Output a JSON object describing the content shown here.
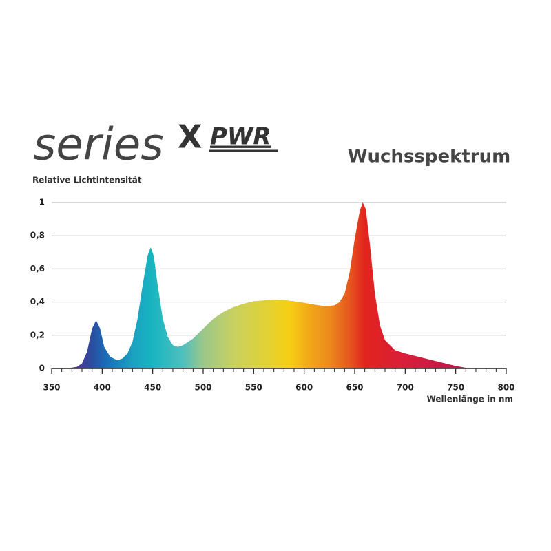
{
  "logo": {
    "text": "series",
    "mark": "X",
    "suffix": "PWR"
  },
  "chart_data": {
    "type": "area",
    "title": "Wuchsspektrum",
    "y_label": "Relative Lichtintensität",
    "x_label": "Wellenlänge in nm",
    "x": [
      350,
      365,
      370,
      375,
      380,
      385,
      390,
      394,
      398,
      402,
      408,
      415,
      420,
      425,
      430,
      435,
      440,
      445,
      448,
      451,
      455,
      460,
      465,
      470,
      475,
      480,
      490,
      500,
      510,
      520,
      530,
      540,
      550,
      560,
      570,
      580,
      590,
      600,
      610,
      620,
      630,
      635,
      640,
      645,
      650,
      655,
      658,
      661,
      665,
      670,
      675,
      680,
      690,
      700,
      710,
      720,
      730,
      740,
      750,
      760,
      770
    ],
    "values": [
      0,
      0,
      0.005,
      0.01,
      0.03,
      0.1,
      0.24,
      0.29,
      0.24,
      0.13,
      0.07,
      0.05,
      0.06,
      0.09,
      0.16,
      0.3,
      0.5,
      0.68,
      0.73,
      0.68,
      0.5,
      0.3,
      0.19,
      0.14,
      0.13,
      0.14,
      0.18,
      0.24,
      0.3,
      0.34,
      0.37,
      0.39,
      0.405,
      0.41,
      0.415,
      0.412,
      0.405,
      0.395,
      0.385,
      0.375,
      0.38,
      0.4,
      0.45,
      0.58,
      0.78,
      0.95,
      1.0,
      0.96,
      0.75,
      0.45,
      0.26,
      0.17,
      0.11,
      0.09,
      0.075,
      0.06,
      0.045,
      0.03,
      0.015,
      0.004,
      0
    ],
    "color_stops": [
      {
        "x": 370,
        "color": "#5b2f8f"
      },
      {
        "x": 390,
        "color": "#2a4ea0"
      },
      {
        "x": 405,
        "color": "#1a6fb8"
      },
      {
        "x": 430,
        "color": "#1aa0c0"
      },
      {
        "x": 450,
        "color": "#19b5c0"
      },
      {
        "x": 480,
        "color": "#4fbfbf"
      },
      {
        "x": 500,
        "color": "#9cc78a"
      },
      {
        "x": 530,
        "color": "#c8d060"
      },
      {
        "x": 560,
        "color": "#dfd23a"
      },
      {
        "x": 585,
        "color": "#f6cf13"
      },
      {
        "x": 605,
        "color": "#f2a81a"
      },
      {
        "x": 625,
        "color": "#ec8a1c"
      },
      {
        "x": 645,
        "color": "#e5561f"
      },
      {
        "x": 660,
        "color": "#e2241e"
      },
      {
        "x": 700,
        "color": "#d81e3a"
      },
      {
        "x": 750,
        "color": "#c4164a"
      }
    ],
    "xlim": [
      350,
      800
    ],
    "ylim": [
      0,
      1
    ],
    "xticks": [
      350,
      400,
      450,
      500,
      550,
      600,
      650,
      700,
      750,
      800
    ],
    "xminorticks": [
      360,
      370,
      380,
      390,
      410,
      420,
      430,
      440,
      460,
      470,
      480,
      490,
      510,
      520,
      530,
      540,
      560,
      570,
      580,
      590,
      610,
      620,
      630,
      640,
      660,
      670,
      680,
      690,
      710,
      720,
      730,
      740,
      760,
      770,
      780,
      790
    ],
    "yticks": [
      0,
      {
        "value": 0.2,
        "label": "0,2"
      },
      {
        "value": 0.4,
        "label": "0,4"
      },
      {
        "value": 0.6,
        "label": "0,6"
      },
      {
        "value": 0.8,
        "label": "0,8"
      },
      1
    ],
    "grid": true
  }
}
